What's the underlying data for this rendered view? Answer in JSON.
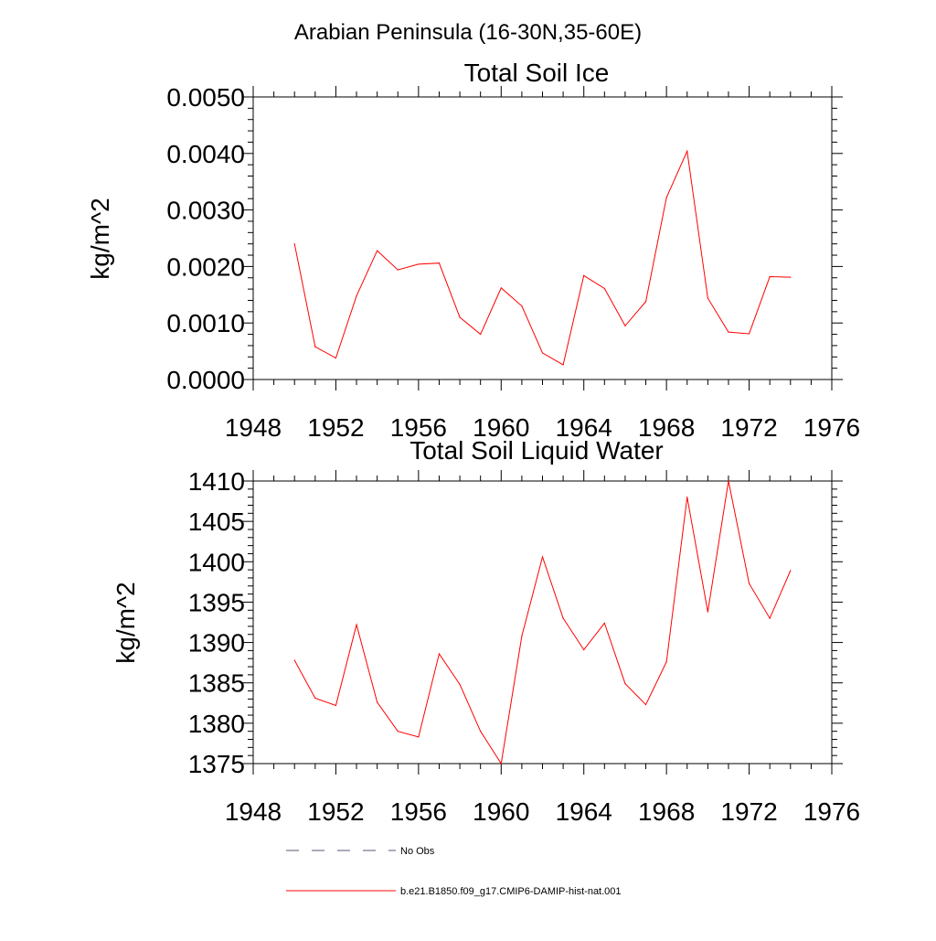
{
  "title": "Arabian Peninsula (16-30N,35-60E)",
  "chart_data": [
    {
      "type": "line",
      "title": "Total Soil Ice",
      "ylabel": "kg/m^2",
      "xlabel": "",
      "xlim": [
        1948,
        1976
      ],
      "ylim": [
        0.0,
        0.005
      ],
      "x_ticks": [
        1948,
        1952,
        1956,
        1960,
        1964,
        1968,
        1972,
        1976
      ],
      "x_tick_labels": [
        "1948",
        "1952",
        "1956",
        "1960",
        "1964",
        "1968",
        "1972",
        "1976"
      ],
      "y_ticks": [
        0.0,
        0.001,
        0.002,
        0.003,
        0.004,
        0.005
      ],
      "y_tick_labels": [
        "0.0000",
        "0.0010",
        "0.0020",
        "0.0030",
        "0.0040",
        "0.0050"
      ],
      "grid": false,
      "series": [
        {
          "name": "b.e21.B1850.f09_g17.CMIP6-DAMIP-hist-nat.001",
          "color": "#ff0000",
          "x": [
            1950,
            1951,
            1952,
            1953,
            1954,
            1955,
            1956,
            1957,
            1958,
            1959,
            1960,
            1961,
            1962,
            1963,
            1964,
            1965,
            1966,
            1967,
            1968,
            1969,
            1970,
            1971,
            1972,
            1973,
            1974
          ],
          "values": [
            0.0024,
            0.00058,
            0.00038,
            0.00148,
            0.00228,
            0.00194,
            0.00204,
            0.00206,
            0.0011,
            0.0008,
            0.00162,
            0.0013,
            0.00047,
            0.00026,
            0.00184,
            0.00161,
            0.00095,
            0.00138,
            0.00322,
            0.00404,
            0.00144,
            0.00084,
            0.00081,
            0.00182,
            0.00181
          ]
        }
      ]
    },
    {
      "type": "line",
      "title": "Total Soil Liquid Water",
      "ylabel": "kg/m^2",
      "xlabel": "",
      "xlim": [
        1948,
        1976
      ],
      "ylim": [
        1375,
        1410
      ],
      "x_ticks": [
        1948,
        1952,
        1956,
        1960,
        1964,
        1968,
        1972,
        1976
      ],
      "x_tick_labels": [
        "1948",
        "1952",
        "1956",
        "1960",
        "1964",
        "1968",
        "1972",
        "1976"
      ],
      "y_ticks": [
        1375,
        1380,
        1385,
        1390,
        1395,
        1400,
        1405,
        1410
      ],
      "y_tick_labels": [
        "1375",
        "1380",
        "1385",
        "1390",
        "1395",
        "1400",
        "1405",
        "1410"
      ],
      "grid": false,
      "series": [
        {
          "name": "b.e21.B1850.f09_g17.CMIP6-DAMIP-hist-nat.001",
          "color": "#ff0000",
          "x": [
            1950,
            1951,
            1952,
            1953,
            1954,
            1955,
            1956,
            1957,
            1958,
            1959,
            1960,
            1961,
            1962,
            1963,
            1964,
            1965,
            1966,
            1967,
            1968,
            1969,
            1970,
            1971,
            1972,
            1973,
            1974
          ],
          "values": [
            1387.8,
            1383.1,
            1382.2,
            1392.2,
            1382.6,
            1379.0,
            1378.3,
            1388.6,
            1384.8,
            1379.0,
            1375.0,
            1390.8,
            1400.6,
            1393.0,
            1389.1,
            1392.4,
            1384.9,
            1382.3,
            1387.6,
            1408.0,
            1393.8,
            1410.0,
            1397.3,
            1393.0,
            1398.9
          ]
        }
      ]
    }
  ],
  "legend": {
    "placement": "bottom-left",
    "items": [
      {
        "label": "No Obs",
        "color": "#555577",
        "style": "dashed"
      },
      {
        "label": "b.e21.B1850.f09_g17.CMIP6-DAMIP-hist-nat.001",
        "color": "#ff0000",
        "style": "solid"
      }
    ]
  }
}
